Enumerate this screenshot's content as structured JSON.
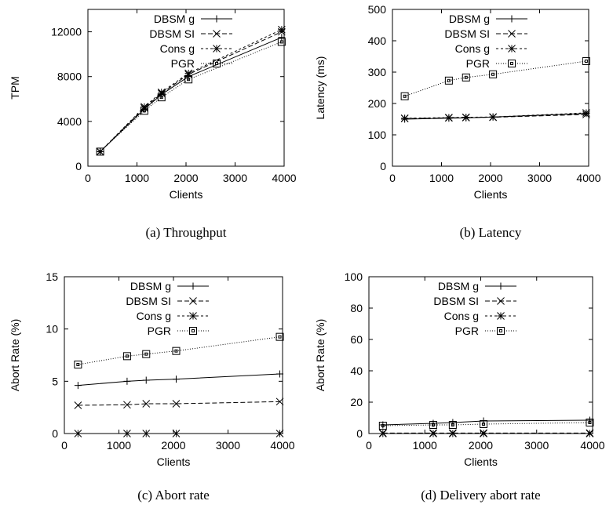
{
  "chart_data": [
    {
      "type": "line",
      "caption": "(a) Throughput",
      "xlabel": "Clients",
      "ylabel": "TPM",
      "xlim": [
        0,
        4000
      ],
      "ylim": [
        0,
        14000
      ],
      "xticks": [
        "0",
        "1000",
        "2000",
        "3000",
        "4000"
      ],
      "xtick_values": [
        0,
        1000,
        2000,
        3000,
        4000
      ],
      "yticks": [
        "0",
        "4000",
        "8000",
        "12000"
      ],
      "ytick_values": [
        0,
        4000,
        8000,
        12000
      ],
      "x": [
        250,
        1150,
        1500,
        2050,
        3950
      ],
      "series": [
        {
          "name": "DBSM g",
          "values": [
            1300,
            5100,
            6400,
            8000,
            11500
          ]
        },
        {
          "name": "DBSM SI",
          "values": [
            1300,
            5200,
            6500,
            8200,
            12000
          ]
        },
        {
          "name": "Cons g",
          "values": [
            1300,
            5300,
            6600,
            8300,
            12200
          ]
        },
        {
          "name": "PGR",
          "values": [
            1300,
            4950,
            6150,
            7750,
            11100
          ]
        }
      ],
      "legend": "top-left"
    },
    {
      "type": "line",
      "caption": "(b) Latency",
      "xlabel": "Clients",
      "ylabel": "Latency (ms)",
      "xlim": [
        0,
        4000
      ],
      "ylim": [
        0,
        500
      ],
      "xticks": [
        "0",
        "1000",
        "2000",
        "3000",
        "4000"
      ],
      "xtick_values": [
        0,
        1000,
        2000,
        3000,
        4000
      ],
      "yticks": [
        "0",
        "100",
        "200",
        "300",
        "400",
        "500"
      ],
      "ytick_values": [
        0,
        100,
        200,
        300,
        400,
        500
      ],
      "x": [
        250,
        1150,
        1500,
        2050,
        3950
      ],
      "series": [
        {
          "name": "DBSM g",
          "values": [
            150,
            153,
            154,
            157,
            168
          ]
        },
        {
          "name": "DBSM SI",
          "values": [
            152,
            154,
            155,
            156,
            165
          ]
        },
        {
          "name": "Cons g",
          "values": [
            153,
            155,
            156,
            157,
            170
          ]
        },
        {
          "name": "PGR",
          "values": [
            223,
            273,
            283,
            293,
            335
          ]
        }
      ],
      "legend": "top-right"
    },
    {
      "type": "line",
      "caption": "(c) Abort rate",
      "xlabel": "Clients",
      "ylabel": "Abort Rate (%)",
      "xlim": [
        0,
        4000
      ],
      "ylim": [
        0,
        15
      ],
      "xticks": [
        "0",
        "1000",
        "2000",
        "3000",
        "4000"
      ],
      "xtick_values": [
        0,
        1000,
        2000,
        3000,
        4000
      ],
      "yticks": [
        "0",
        "5",
        "10",
        "15"
      ],
      "ytick_values": [
        0,
        5,
        10,
        15
      ],
      "x": [
        250,
        1150,
        1500,
        2050,
        3950
      ],
      "series": [
        {
          "name": "DBSM g",
          "values": [
            4.6,
            5.0,
            5.1,
            5.2,
            5.7
          ]
        },
        {
          "name": "DBSM SI",
          "values": [
            2.7,
            2.75,
            2.85,
            2.85,
            3.05
          ]
        },
        {
          "name": "Cons g",
          "values": [
            0,
            0,
            0,
            0,
            0
          ]
        },
        {
          "name": "PGR",
          "values": [
            6.6,
            7.4,
            7.6,
            7.9,
            9.25
          ]
        }
      ],
      "legend": "top-center"
    },
    {
      "type": "line",
      "caption": "(d) Delivery abort rate",
      "xlabel": "Clients",
      "ylabel": "Abort Rate (%)",
      "xlim": [
        0,
        4000
      ],
      "ylim": [
        0,
        100
      ],
      "xticks": [
        "0",
        "1000",
        "2000",
        "3000",
        "4000"
      ],
      "xtick_values": [
        0,
        1000,
        2000,
        3000,
        4000
      ],
      "yticks": [
        "0",
        "20",
        "40",
        "60",
        "80",
        "100"
      ],
      "ytick_values": [
        0,
        20,
        40,
        60,
        80,
        100
      ],
      "x": [
        250,
        1150,
        1500,
        2050,
        3950
      ],
      "series": [
        {
          "name": "DBSM g",
          "values": [
            5.5,
            6.5,
            7.0,
            8.0,
            8.5
          ]
        },
        {
          "name": "DBSM SI",
          "values": [
            0.3,
            0.3,
            0.3,
            0.3,
            0.3
          ]
        },
        {
          "name": "Cons g",
          "values": [
            0,
            0,
            0,
            0,
            0
          ]
        },
        {
          "name": "PGR",
          "values": [
            5.0,
            5.5,
            5.5,
            6.0,
            7.0
          ]
        }
      ],
      "legend": "top-center"
    }
  ]
}
